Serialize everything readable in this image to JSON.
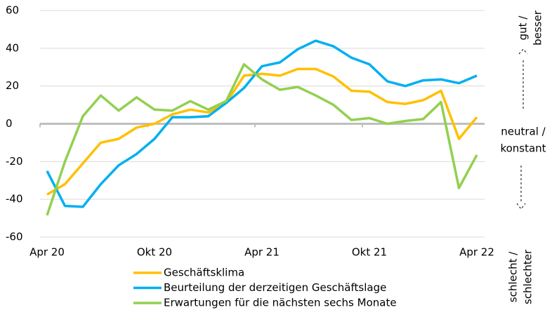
{
  "chart_data": {
    "type": "line",
    "categories": [
      "Apr 20",
      null,
      null,
      null,
      null,
      null,
      "Okt 20",
      null,
      null,
      null,
      null,
      null,
      "Apr 21",
      null,
      null,
      null,
      null,
      null,
      "Okt 21",
      null,
      null,
      null,
      null,
      null,
      "Apr 22"
    ],
    "series": [
      {
        "name": "Geschäftsklima",
        "color": "#ffc000",
        "values": [
          -37.5,
          -32,
          -21,
          -10,
          -8,
          -2,
          0,
          5,
          7.5,
          6,
          11,
          25.5,
          26.5,
          25.5,
          29,
          29,
          25,
          17.5,
          17,
          11.5,
          10.5,
          12.5,
          17.5,
          -8,
          3.5
        ]
      },
      {
        "name": "Beurteilung der derzeitigen Geschäftslage",
        "color": "#00b0f0",
        "values": [
          -25,
          -43.5,
          -44,
          -32,
          -22,
          -16,
          -8,
          3.5,
          3.5,
          4,
          11,
          19,
          30.5,
          32.5,
          39.5,
          44,
          41,
          35,
          31.5,
          22.5,
          20,
          23,
          23.5,
          21.5,
          25.5
        ]
      },
      {
        "name": "Erwartungen für die nächsten sechs Monate",
        "color": "#92d050",
        "values": [
          -48.5,
          -20,
          4,
          15,
          7,
          14,
          7.5,
          7,
          12,
          7.5,
          12,
          31.5,
          23.5,
          18,
          19.5,
          15,
          10,
          2,
          3,
          0,
          1.5,
          2.5,
          11.5,
          -34,
          -16.5
        ]
      }
    ],
    "ylim": [
      -60,
      60
    ],
    "yticks": [
      -60,
      -40,
      -20,
      0,
      20,
      40,
      60
    ],
    "grid": true,
    "annotations": {
      "top": [
        "gut /",
        "besser"
      ],
      "middle": [
        "neutral /",
        "konstant"
      ],
      "bottom": [
        "schlecht /",
        "schlechter"
      ]
    }
  }
}
